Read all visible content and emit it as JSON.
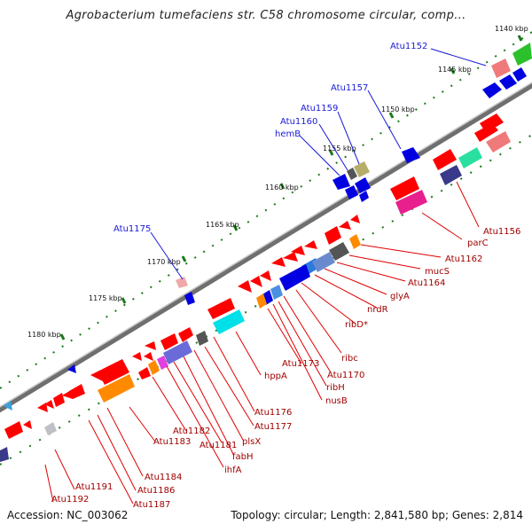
{
  "title": "Agrobacterium tumefaciens str. C58 chromosome circular, comp...",
  "footer": {
    "accession": "Accession: NC_003062",
    "stats": "Topology: circular; Length: 2,841,580 bp; Genes: 2,814"
  },
  "ticks": [
    "1140 kbp",
    "1145 kbp",
    "1150 kbp",
    "1155 kbp",
    "1160 kbp",
    "1165 kbp",
    "1170 kbp",
    "1175 kbp",
    "1180 kbp"
  ],
  "labels_above": [
    "Atu1152",
    "Atu1157",
    "Atu1159",
    "Atu1160",
    "hemB",
    "Atu1175"
  ],
  "labels_below": [
    "Atu1156",
    "parC",
    "Atu1162",
    "mucS",
    "Atu1164",
    "glyA",
    "nrdR",
    "ribD*",
    "ribc",
    "Atu1170",
    "ribH",
    "nusB",
    "Atu1173",
    "hppA",
    "Atu1176",
    "Atu1177",
    "plsX",
    "fabH",
    "Atu1181",
    "ihfA",
    "Atu1182",
    "Atu1183",
    "Atu1184",
    "Atu1186",
    "Atu1187",
    "Atu1191",
    "Atu1192"
  ],
  "colors": {
    "gene_red": "#ff0000",
    "gene_blue": "#0000e0",
    "backbone": "#7f7f7f",
    "leader_blue": "#1a1ad6",
    "leader_red": "#e00000",
    "tick_green": "#1a7a1a"
  }
}
